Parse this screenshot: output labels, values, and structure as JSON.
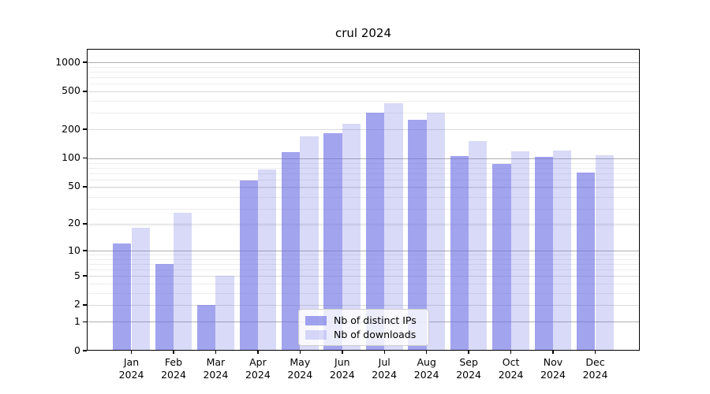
{
  "title": "crul 2024",
  "chart_data": {
    "type": "bar",
    "title": "crul 2024",
    "scale": "log10(1+y)",
    "grid": "horizontal",
    "legend_position": "bottom-center-inside",
    "categories": [
      "Jan",
      "Feb",
      "Mar",
      "Apr",
      "May",
      "Jun",
      "Jul",
      "Aug",
      "Sep",
      "Oct",
      "Nov",
      "Dec"
    ],
    "year_label": "2024",
    "series": [
      {
        "name": "Nb of distinct IPs",
        "color": "rgba(105,108,227,0.62)",
        "values": [
          12,
          7,
          2,
          58,
          115,
          182,
          301,
          254,
          105,
          86,
          103,
          70
        ]
      },
      {
        "name": "Nb of downloads",
        "color": "rgba(105,108,227,0.25)",
        "values": [
          18,
          26,
          5,
          76,
          170,
          231,
          376,
          301,
          151,
          118,
          120,
          108
        ]
      }
    ],
    "xlabel": "",
    "ylabel": "",
    "ylim": [
      0,
      1380
    ],
    "y_major_ticks": [
      0,
      1,
      2,
      5,
      10,
      20,
      50,
      100,
      200,
      500,
      1000
    ],
    "y_decade_lines": [
      1,
      10,
      100,
      1000
    ],
    "y_minor_gridlines": [
      3,
      4,
      6,
      7,
      8,
      9,
      19,
      29,
      39,
      49,
      59,
      69,
      79,
      89,
      199,
      299,
      399,
      499,
      599,
      699,
      799,
      899
    ]
  },
  "colors": {
    "bar_dark": "rgba(105,108,227,0.62)",
    "bar_light": "rgba(105,108,227,0.25)",
    "decade_gridline": "#b0b0b0",
    "major_gridline": "#dadada",
    "minor_gridline": "#ededed"
  }
}
